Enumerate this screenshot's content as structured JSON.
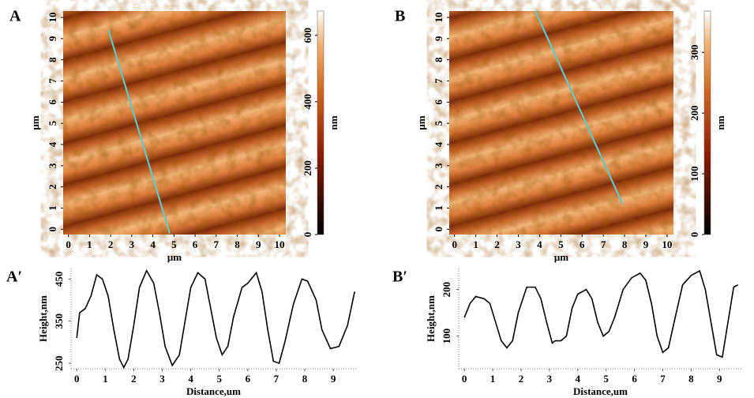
{
  "chart_data": [
    {
      "type": "image",
      "label": "A",
      "xlabel": "μm",
      "ylabel": "μm",
      "xlim": [
        -0.25,
        10.3
      ],
      "ylim": [
        -0.25,
        10.3
      ],
      "xticks": [
        0,
        1,
        2,
        3,
        4,
        5,
        6,
        7,
        8,
        9,
        10
      ],
      "yticks": [
        0,
        1,
        2,
        3,
        4,
        5,
        6,
        7,
        8,
        9,
        10
      ],
      "colorbar": {
        "label": "nm",
        "lim": [
          0,
          673
        ],
        "ticks": [
          0,
          200,
          400,
          600
        ]
      },
      "scan_line": {
        "color": "#5fc8c8",
        "x": [
          1.9,
          4.8
        ],
        "y": [
          9.4,
          -0.2
        ]
      }
    },
    {
      "type": "image",
      "label": "B",
      "xlabel": "μm",
      "ylabel": "μm",
      "xlim": [
        -0.25,
        10.3
      ],
      "ylim": [
        -0.25,
        10.3
      ],
      "xticks": [
        0,
        1,
        2,
        3,
        4,
        5,
        6,
        7,
        8,
        9,
        10
      ],
      "yticks": [
        0,
        1,
        2,
        3,
        4,
        5,
        6,
        7,
        8,
        9,
        10
      ],
      "colorbar": {
        "label": "nm",
        "lim": [
          0,
          368
        ],
        "ticks": [
          0,
          100,
          200,
          300
        ]
      },
      "scan_line": {
        "color": "#5fc8c8",
        "x": [
          3.8,
          7.9
        ],
        "y": [
          10.3,
          1.2
        ]
      }
    },
    {
      "type": "line",
      "label": "A′",
      "xlabel": "Distance,um",
      "ylabel": "Height,nm",
      "xlim": [
        -0.2,
        9.8
      ],
      "ylim": [
        237,
        475
      ],
      "xticks": [
        0,
        1,
        2,
        3,
        4,
        5,
        6,
        7,
        8,
        9
      ],
      "yticks": [
        250,
        350,
        450
      ],
      "color": "#000000",
      "x": [
        0,
        0.1,
        0.3,
        0.5,
        0.7,
        0.9,
        1.1,
        1.3,
        1.5,
        1.65,
        1.8,
        2.0,
        2.2,
        2.45,
        2.7,
        2.9,
        3.1,
        3.35,
        3.6,
        3.8,
        4.0,
        4.25,
        4.5,
        4.7,
        4.9,
        5.1,
        5.3,
        5.5,
        5.8,
        6.0,
        6.3,
        6.5,
        6.7,
        6.9,
        7.1,
        7.3,
        7.6,
        7.9,
        8.1,
        8.4,
        8.6,
        8.9,
        9.2,
        9.5,
        9.75
      ],
      "values": [
        310,
        370,
        380,
        410,
        460,
        450,
        410,
        330,
        260,
        240,
        260,
        340,
        430,
        470,
        440,
        370,
        290,
        245,
        270,
        350,
        430,
        465,
        450,
        380,
        310,
        270,
        290,
        360,
        430,
        440,
        465,
        420,
        330,
        255,
        250,
        300,
        390,
        450,
        445,
        400,
        330,
        285,
        290,
        340,
        420
      ]
    },
    {
      "type": "line",
      "label": "B′",
      "xlabel": "Distance,um",
      "ylabel": "Height,nm",
      "xlim": [
        -0.2,
        9.8
      ],
      "ylim": [
        30,
        245
      ],
      "xticks": [
        0,
        1,
        2,
        3,
        4,
        5,
        6,
        7,
        8,
        9
      ],
      "yticks": [
        100,
        200
      ],
      "color": "#000000",
      "x": [
        0,
        0.2,
        0.4,
        0.7,
        0.9,
        1.1,
        1.3,
        1.5,
        1.7,
        1.9,
        2.2,
        2.5,
        2.7,
        2.9,
        3.1,
        3.2,
        3.4,
        3.6,
        3.8,
        4.0,
        4.3,
        4.5,
        4.7,
        4.9,
        5.1,
        5.3,
        5.6,
        5.9,
        6.2,
        6.4,
        6.6,
        6.8,
        7.0,
        7.2,
        7.4,
        7.7,
        8.0,
        8.3,
        8.5,
        8.7,
        8.9,
        9.1,
        9.3,
        9.5,
        9.65
      ],
      "values": [
        140,
        170,
        185,
        180,
        170,
        130,
        90,
        75,
        90,
        150,
        205,
        205,
        180,
        130,
        85,
        90,
        90,
        100,
        160,
        190,
        200,
        180,
        130,
        100,
        110,
        140,
        200,
        225,
        235,
        220,
        170,
        100,
        65,
        75,
        130,
        210,
        230,
        240,
        200,
        130,
        60,
        55,
        130,
        205,
        210
      ]
    }
  ]
}
